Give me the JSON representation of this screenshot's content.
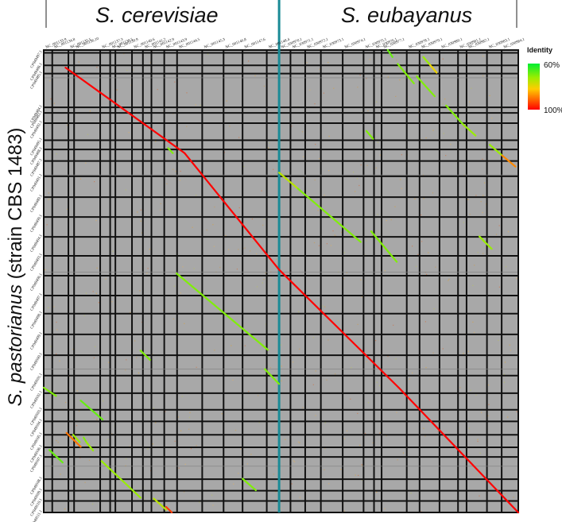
{
  "chart_data": {
    "type": "dotplot",
    "y_title_species": "S. pastorianus",
    "y_title_strain": "(strain CBS 1483)",
    "x_groups": [
      {
        "name": "S. cerevisiae",
        "start": 0,
        "end": 0.496
      },
      {
        "name": "S. eubayanus",
        "start": 0.496,
        "end": 1.0
      }
    ],
    "x_contigs": [
      {
        "label": "NC_001133.9",
        "start": 0.0,
        "end": 0.018
      },
      {
        "label": "NC_001134.8",
        "start": 0.018,
        "end": 0.052
      },
      {
        "label": "NC_001135.5",
        "start": 0.052,
        "end": 0.064
      },
      {
        "label": "NC_001136.10",
        "start": 0.064,
        "end": 0.119
      },
      {
        "label": "NC_001137.3",
        "start": 0.119,
        "end": 0.14
      },
      {
        "label": "NC_001138.5",
        "start": 0.14,
        "end": 0.151
      },
      {
        "label": "NC_001139.9",
        "start": 0.151,
        "end": 0.186
      },
      {
        "label": "NC_001140.6",
        "start": 0.186,
        "end": 0.209
      },
      {
        "label": "NC_001141.2",
        "start": 0.209,
        "end": 0.227
      },
      {
        "label": "NC_001142.9",
        "start": 0.227,
        "end": 0.254
      },
      {
        "label": "NC_001143.9",
        "start": 0.254,
        "end": 0.281
      },
      {
        "label": "NC_001144.5",
        "start": 0.281,
        "end": 0.334
      },
      {
        "label": "NC_001145.3",
        "start": 0.334,
        "end": 0.379
      },
      {
        "label": "NC_001146.8",
        "start": 0.379,
        "end": 0.419
      },
      {
        "label": "NC_001147.6",
        "start": 0.419,
        "end": 0.47
      },
      {
        "label": "NC_001148.4",
        "start": 0.47,
        "end": 0.496
      },
      {
        "label": "NC_030970.1",
        "start": 0.496,
        "end": 0.52
      },
      {
        "label": "NC_030971.1",
        "start": 0.52,
        "end": 0.551
      },
      {
        "label": "NC_030972.1",
        "start": 0.551,
        "end": 0.584
      },
      {
        "label": "NC_030973.1",
        "start": 0.584,
        "end": 0.63
      },
      {
        "label": "NC_030974.1",
        "start": 0.63,
        "end": 0.674
      },
      {
        "label": "NC_030975.1",
        "start": 0.674,
        "end": 0.696
      },
      {
        "label": "NC_030976.1",
        "start": 0.696,
        "end": 0.712
      },
      {
        "label": "NC_030977.1",
        "start": 0.712,
        "end": 0.765
      },
      {
        "label": "NC_030978.1",
        "start": 0.765,
        "end": 0.792
      },
      {
        "label": "NC_030979.1",
        "start": 0.792,
        "end": 0.834
      },
      {
        "label": "NC_030980.1",
        "start": 0.834,
        "end": 0.873
      },
      {
        "label": "NC_030981.1",
        "start": 0.873,
        "end": 0.891
      },
      {
        "label": "NC_030982.1",
        "start": 0.891,
        "end": 0.934
      },
      {
        "label": "NC_030983.1",
        "start": 0.934,
        "end": 0.965
      },
      {
        "label": "NC_030984.1",
        "start": 0.965,
        "end": 1.0
      }
    ],
    "y_contigs": [
      {
        "label": "CP049497.1",
        "start": 0.0,
        "end": 0.006
      },
      {
        "label": "CP049486.1",
        "start": 0.006,
        "end": 0.033
      },
      {
        "label": "CP049485.1",
        "start": 0.033,
        "end": 0.051
      },
      {
        "label": "CP049484.1",
        "start": 0.051,
        "end": 0.124
      },
      {
        "label": "CP049483.1",
        "start": 0.124,
        "end": 0.136
      },
      {
        "label": "CP049492.1",
        "start": 0.136,
        "end": 0.158
      },
      {
        "label": "CP049495.1",
        "start": 0.158,
        "end": 0.195
      },
      {
        "label": "CP049488.1",
        "start": 0.195,
        "end": 0.215
      },
      {
        "label": "CP049487.1",
        "start": 0.215,
        "end": 0.24
      },
      {
        "label": "CP049491.1",
        "start": 0.24,
        "end": 0.273
      },
      {
        "label": "CP049489.1",
        "start": 0.273,
        "end": 0.318
      },
      {
        "label": "CP049490.1",
        "start": 0.318,
        "end": 0.361
      },
      {
        "label": "CP049494.1",
        "start": 0.361,
        "end": 0.404
      },
      {
        "label": "CP049493.1",
        "start": 0.404,
        "end": 0.445
      },
      {
        "label": "CP049496.1",
        "start": 0.445,
        "end": 0.488
      },
      {
        "label": "CP049497.1",
        "start": 0.488,
        "end": 0.531
      },
      {
        "label": "CP049498.1",
        "start": 0.531,
        "end": 0.57
      },
      {
        "label": "CP049499.1",
        "start": 0.57,
        "end": 0.615
      },
      {
        "label": "CP049500.1",
        "start": 0.615,
        "end": 0.66
      },
      {
        "label": "CP049501.1",
        "start": 0.66,
        "end": 0.704
      },
      {
        "label": "CP049502.1",
        "start": 0.704,
        "end": 0.742
      },
      {
        "label": "CP049503.1",
        "start": 0.742,
        "end": 0.778
      },
      {
        "label": "CP049504.1",
        "start": 0.778,
        "end": 0.803
      },
      {
        "label": "CP049505.1",
        "start": 0.803,
        "end": 0.832
      },
      {
        "label": "CP049506.1",
        "start": 0.832,
        "end": 0.859
      },
      {
        "label": "CP049507.1",
        "start": 0.859,
        "end": 0.88
      },
      {
        "label": "CP049508.1",
        "start": 0.88,
        "end": 0.928
      },
      {
        "label": "CP049509.1",
        "start": 0.928,
        "end": 0.953
      },
      {
        "label": "CP049510.1",
        "start": 0.953,
        "end": 0.975
      },
      {
        "label": "CP049511.1",
        "start": 0.975,
        "end": 1.0
      }
    ],
    "segments": [
      {
        "x1": 0.046,
        "y1": 0.038,
        "x2": 0.297,
        "y2": 0.223,
        "identity": 100
      },
      {
        "x1": 0.297,
        "y1": 0.223,
        "x2": 0.496,
        "y2": 0.475,
        "identity": 100
      },
      {
        "x1": 0.496,
        "y1": 0.475,
        "x2": 0.748,
        "y2": 0.73,
        "identity": 100
      },
      {
        "x1": 0.748,
        "y1": 0.73,
        "x2": 1.0,
        "y2": 1.0,
        "identity": 100
      },
      {
        "x1": 0.262,
        "y1": 0.212,
        "x2": 0.272,
        "y2": 0.223,
        "identity": 70
      },
      {
        "x1": 0.725,
        "y1": 0.0,
        "x2": 0.735,
        "y2": 0.015,
        "identity": 68
      },
      {
        "x1": 0.746,
        "y1": 0.03,
        "x2": 0.78,
        "y2": 0.072,
        "identity": 70
      },
      {
        "x1": 0.8,
        "y1": 0.015,
        "x2": 0.814,
        "y2": 0.032,
        "identity": 72
      },
      {
        "x1": 0.814,
        "y1": 0.032,
        "x2": 0.828,
        "y2": 0.049,
        "identity": 80
      },
      {
        "x1": 0.786,
        "y1": 0.057,
        "x2": 0.824,
        "y2": 0.1,
        "identity": 70
      },
      {
        "x1": 0.848,
        "y1": 0.12,
        "x2": 0.884,
        "y2": 0.161,
        "identity": 70
      },
      {
        "x1": 0.884,
        "y1": 0.161,
        "x2": 0.91,
        "y2": 0.185,
        "identity": 72
      },
      {
        "x1": 0.68,
        "y1": 0.175,
        "x2": 0.694,
        "y2": 0.192,
        "identity": 70
      },
      {
        "x1": 0.94,
        "y1": 0.205,
        "x2": 0.966,
        "y2": 0.228,
        "identity": 72
      },
      {
        "x1": 0.966,
        "y1": 0.228,
        "x2": 0.994,
        "y2": 0.252,
        "identity": 88
      },
      {
        "x1": 0.496,
        "y1": 0.265,
        "x2": 0.536,
        "y2": 0.3,
        "identity": 75
      },
      {
        "x1": 0.536,
        "y1": 0.3,
        "x2": 0.668,
        "y2": 0.415,
        "identity": 70
      },
      {
        "x1": 0.69,
        "y1": 0.392,
        "x2": 0.744,
        "y2": 0.458,
        "identity": 70
      },
      {
        "x1": 0.918,
        "y1": 0.403,
        "x2": 0.944,
        "y2": 0.43,
        "identity": 72
      },
      {
        "x1": 0.28,
        "y1": 0.483,
        "x2": 0.472,
        "y2": 0.648,
        "identity": 70
      },
      {
        "x1": 0.204,
        "y1": 0.65,
        "x2": 0.224,
        "y2": 0.67,
        "identity": 70
      },
      {
        "x1": 0.466,
        "y1": 0.69,
        "x2": 0.496,
        "y2": 0.722,
        "identity": 70
      },
      {
        "x1": 0.0,
        "y1": 0.73,
        "x2": 0.026,
        "y2": 0.748,
        "identity": 70
      },
      {
        "x1": 0.078,
        "y1": 0.758,
        "x2": 0.124,
        "y2": 0.799,
        "identity": 68
      },
      {
        "x1": 0.048,
        "y1": 0.828,
        "x2": 0.078,
        "y2": 0.858,
        "identity": 90
      },
      {
        "x1": 0.062,
        "y1": 0.832,
        "x2": 0.076,
        "y2": 0.848,
        "identity": 72
      },
      {
        "x1": 0.012,
        "y1": 0.865,
        "x2": 0.04,
        "y2": 0.892,
        "identity": 68
      },
      {
        "x1": 0.084,
        "y1": 0.838,
        "x2": 0.09,
        "y2": 0.848,
        "identity": 70
      },
      {
        "x1": 0.09,
        "y1": 0.848,
        "x2": 0.104,
        "y2": 0.866,
        "identity": 72
      },
      {
        "x1": 0.122,
        "y1": 0.889,
        "x2": 0.204,
        "y2": 0.968,
        "identity": 72
      },
      {
        "x1": 0.419,
        "y1": 0.927,
        "x2": 0.447,
        "y2": 0.952,
        "identity": 70
      },
      {
        "x1": 0.232,
        "y1": 0.97,
        "x2": 0.258,
        "y2": 0.994,
        "identity": 75
      },
      {
        "x1": 0.258,
        "y1": 0.988,
        "x2": 0.27,
        "y2": 1.0,
        "identity": 95
      }
    ],
    "legend": {
      "title": "Identity",
      "max": "60%",
      "min": "100%",
      "placement": "right"
    }
  }
}
